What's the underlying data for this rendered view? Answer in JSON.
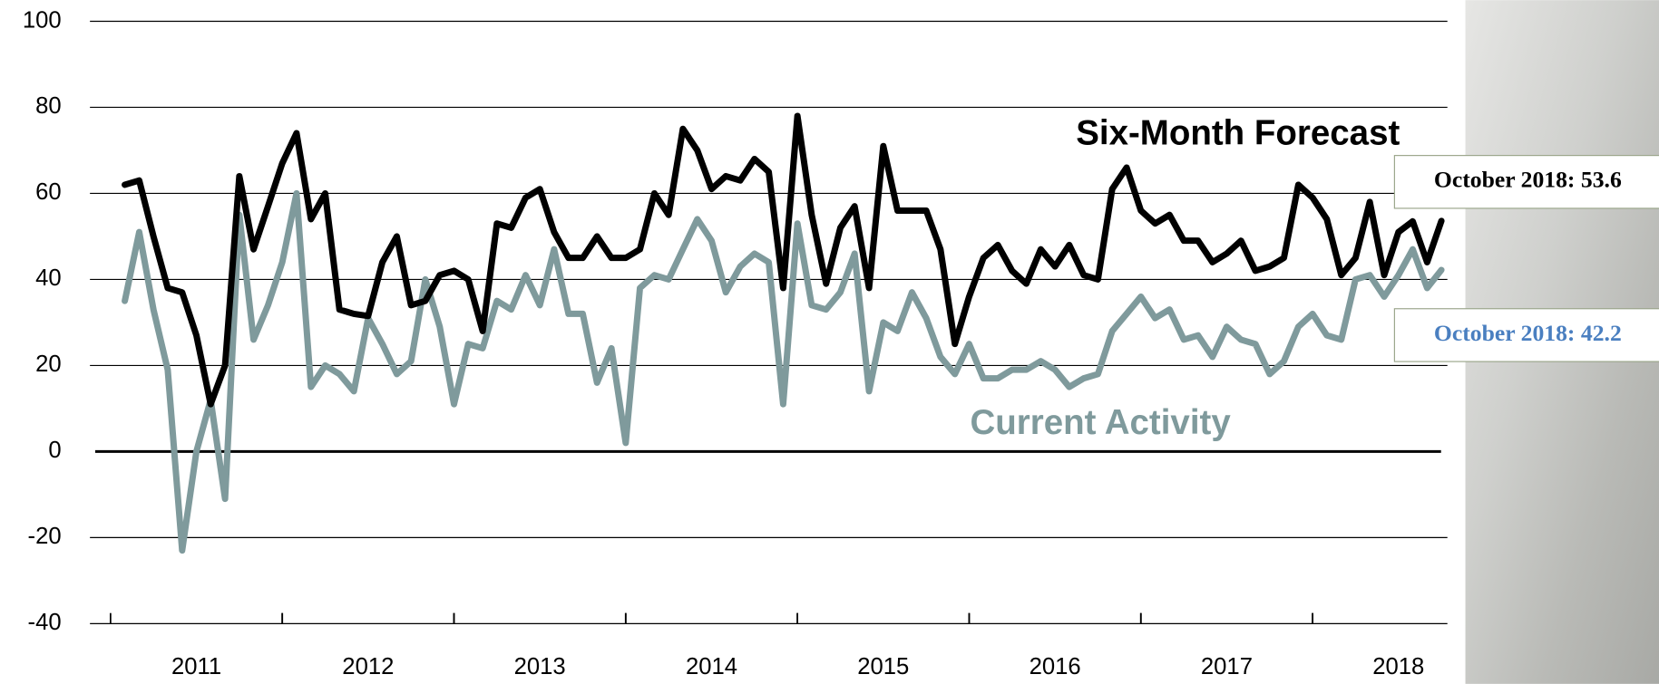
{
  "chart_data": {
    "type": "line",
    "x": [
      2011.083,
      2011.167,
      2011.25,
      2011.333,
      2011.417,
      2011.5,
      2011.583,
      2011.667,
      2011.75,
      2011.833,
      2011.917,
      2012.0,
      2012.083,
      2012.167,
      2012.25,
      2012.333,
      2012.417,
      2012.5,
      2012.583,
      2012.667,
      2012.75,
      2012.833,
      2012.917,
      2013.0,
      2013.083,
      2013.167,
      2013.25,
      2013.333,
      2013.417,
      2013.5,
      2013.583,
      2013.667,
      2013.75,
      2013.833,
      2013.917,
      2014.0,
      2014.083,
      2014.167,
      2014.25,
      2014.333,
      2014.417,
      2014.5,
      2014.583,
      2014.667,
      2014.75,
      2014.833,
      2014.917,
      2015.0,
      2015.083,
      2015.167,
      2015.25,
      2015.333,
      2015.417,
      2015.5,
      2015.583,
      2015.667,
      2015.75,
      2015.833,
      2015.917,
      2016.0,
      2016.083,
      2016.167,
      2016.25,
      2016.333,
      2016.417,
      2016.5,
      2016.583,
      2016.667,
      2016.75,
      2016.833,
      2016.917,
      2017.0,
      2017.083,
      2017.167,
      2017.25,
      2017.333,
      2017.417,
      2017.5,
      2017.583,
      2017.667,
      2017.75,
      2017.833,
      2017.917,
      2018.0,
      2018.083,
      2018.167,
      2018.25,
      2018.333,
      2018.417,
      2018.5,
      2018.583,
      2018.667,
      2018.75
    ],
    "series": [
      {
        "name": "Six-Month Forecast",
        "color": "#000000",
        "values": [
          62,
          63,
          50,
          38,
          37,
          27,
          11,
          20,
          64,
          47,
          57,
          67,
          74,
          54,
          60,
          33,
          32,
          31.5,
          44,
          50,
          34,
          35,
          41,
          42,
          40,
          28,
          53,
          52,
          59,
          61,
          51,
          45,
          45,
          50,
          45,
          45,
          47,
          60,
          55,
          75,
          70,
          61,
          64,
          63,
          68,
          65,
          38,
          78,
          55,
          39,
          52,
          57,
          38,
          71,
          56,
          56,
          56,
          47,
          25,
          36,
          45,
          48,
          42,
          39,
          47,
          43,
          48,
          41,
          40,
          61,
          66,
          56,
          53,
          55,
          49,
          49,
          44,
          46,
          49,
          42,
          43,
          45,
          62,
          59,
          54,
          41,
          45,
          58,
          41,
          51,
          53.5,
          44,
          53.6
        ]
      },
      {
        "name": "Current Activity",
        "color": "#7f9a9c",
        "values": [
          35,
          51,
          33,
          19,
          -23,
          0,
          12,
          -11,
          55,
          26,
          34,
          44,
          60,
          15,
          20,
          18,
          14,
          31,
          25,
          18,
          21,
          40,
          29,
          11,
          25,
          24,
          35,
          33,
          41,
          34,
          47,
          32,
          32,
          16,
          24,
          2,
          38,
          41,
          40,
          47,
          54,
          49,
          37,
          43,
          46,
          44,
          11,
          53,
          34,
          33,
          37,
          46,
          14,
          30,
          28,
          37,
          31,
          22,
          18,
          25,
          17,
          17,
          19,
          19,
          21,
          19,
          15,
          17,
          18,
          28,
          32,
          36,
          31,
          33,
          26,
          27,
          22,
          29,
          26,
          25,
          18,
          21,
          29,
          32,
          27,
          26,
          40,
          41,
          36,
          41,
          47,
          38,
          42.2
        ]
      }
    ],
    "xlim": [
      2010.88,
      2018.785
    ],
    "xticks": [
      {
        "value": 2011.5,
        "label": "2011"
      },
      {
        "value": 2012.5,
        "label": "2012"
      },
      {
        "value": 2013.5,
        "label": "2013"
      },
      {
        "value": 2014.5,
        "label": "2014"
      },
      {
        "value": 2015.5,
        "label": "2015"
      },
      {
        "value": 2016.5,
        "label": "2016"
      },
      {
        "value": 2017.5,
        "label": "2017"
      },
      {
        "value": 2018.5,
        "label": "2018"
      }
    ],
    "ylim": [
      -40,
      100
    ],
    "yticks": [
      -40,
      -20,
      0,
      20,
      40,
      60,
      80,
      100
    ],
    "grid": true,
    "annotations": [
      {
        "text": "October 2018: 53.6",
        "color": "#000000",
        "value": 53.6
      },
      {
        "text": "October 2018: 42.2",
        "color": "#4a7fc0",
        "value": 42.2
      }
    ]
  }
}
